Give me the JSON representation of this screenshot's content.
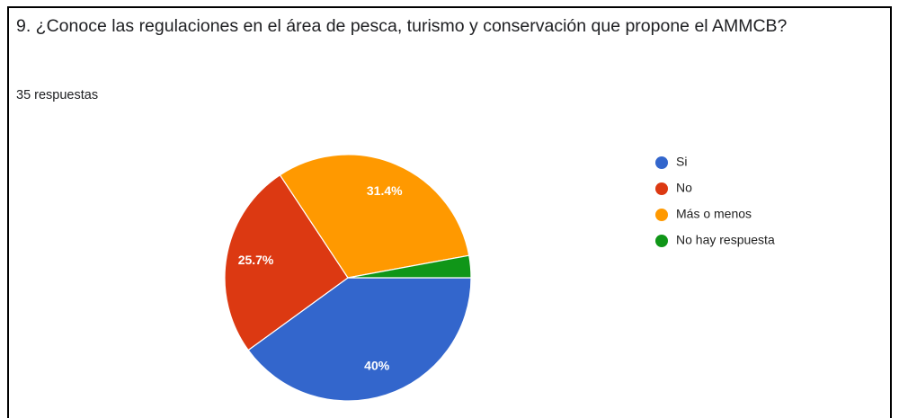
{
  "chart_data": {
    "type": "pie",
    "title": "9. ¿Conoce las regulaciones en el área de pesca, turismo y conservación que propone el AMMCB?",
    "subtitle": "35 respuestas",
    "categories": [
      "Si",
      "No",
      "Más o menos",
      "No hay respuesta"
    ],
    "values": [
      40,
      25.7,
      31.4,
      2.9
    ],
    "value_labels": [
      "40%",
      "25.7%",
      "31.4%",
      null
    ],
    "colors": [
      "#3366cc",
      "#dc3912",
      "#ff9900",
      "#109618"
    ],
    "legend": "right"
  }
}
